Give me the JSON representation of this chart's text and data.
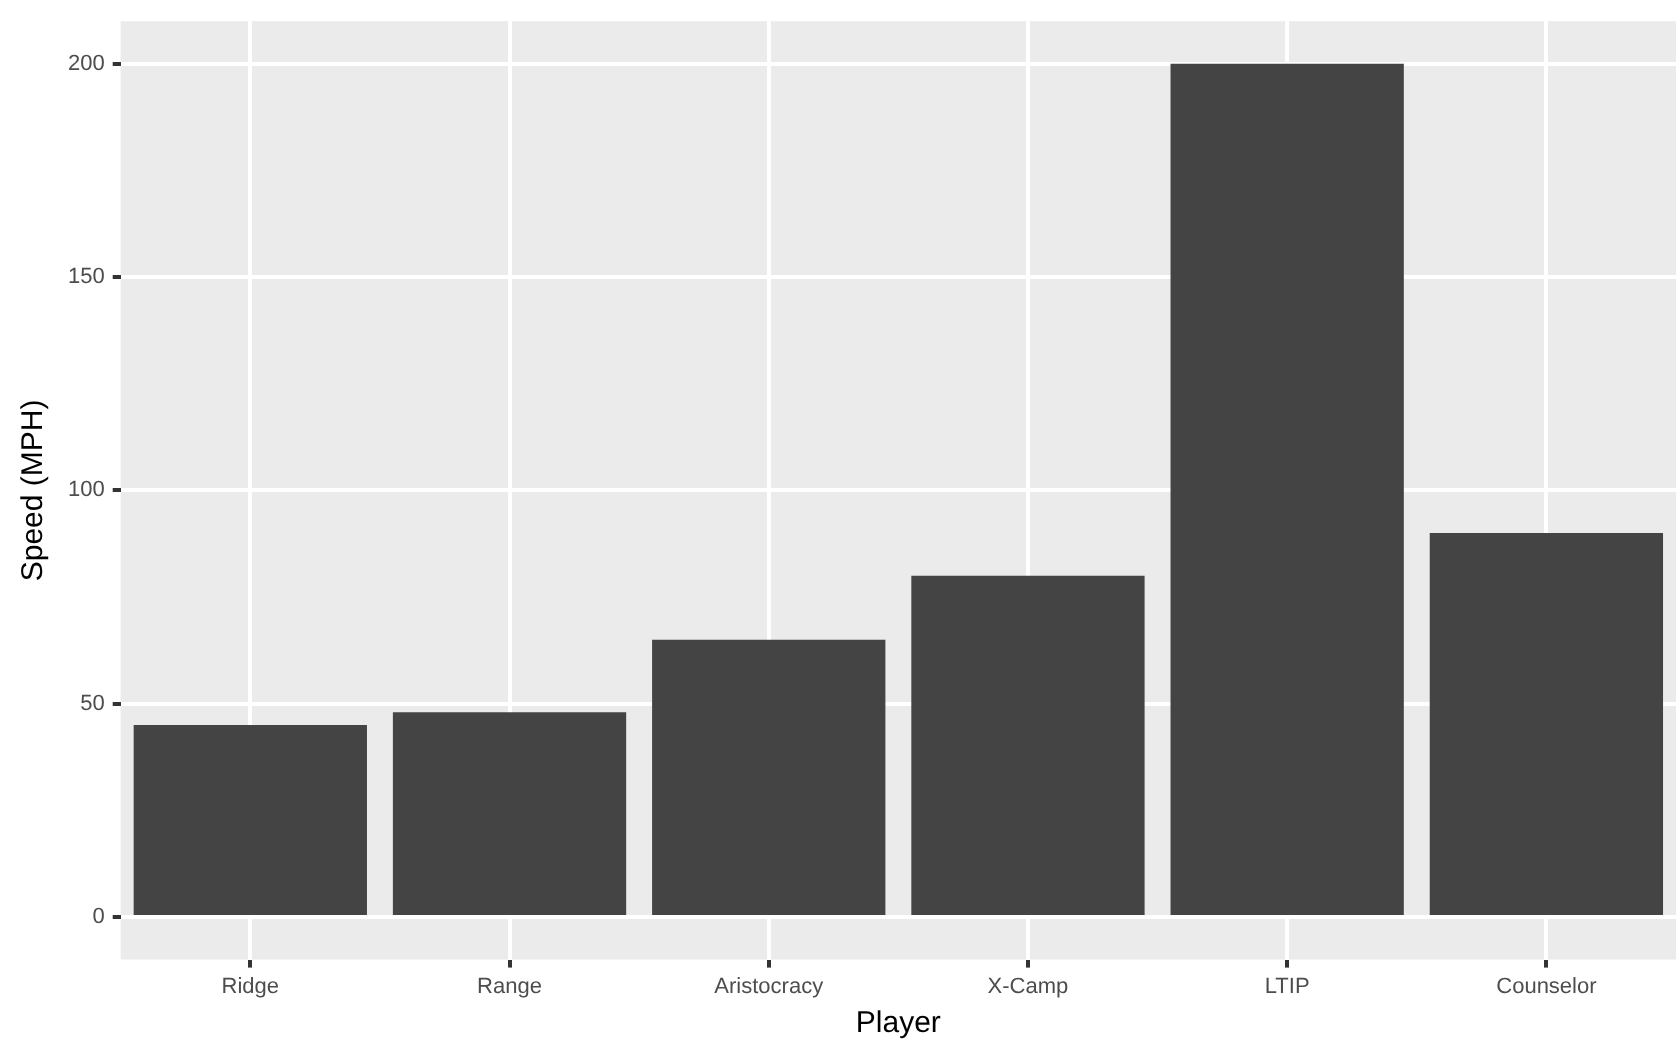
{
  "chart_data": {
    "type": "bar",
    "xlabel": "Player",
    "ylabel": "Speed (MPH)",
    "categories": [
      "Ridge",
      "Range",
      "Aristocracy",
      "X-Camp",
      "LTIP",
      "Counselor"
    ],
    "values": [
      45,
      48,
      65,
      80,
      200,
      90
    ],
    "color": "#444444",
    "ylim": [
      -10,
      210
    ],
    "yticks": [
      0,
      50,
      100,
      150,
      200
    ],
    "grid": true,
    "legend": false
  }
}
